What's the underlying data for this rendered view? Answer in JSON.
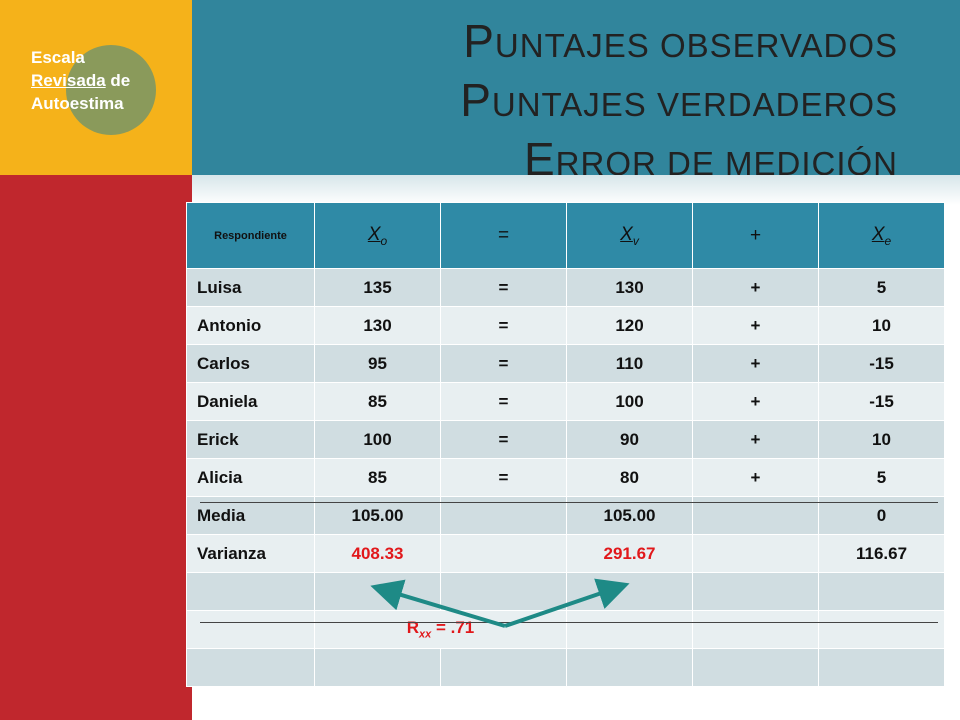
{
  "sidebar": {
    "label_line1": "Escala",
    "label_line2_underlined": "Revisada",
    "label_line2_rest": " de",
    "label_line3": "Autoestima"
  },
  "title": {
    "line1_cap": "P",
    "line1_rest": "untajes observados",
    "line2_cap": "P",
    "line2_rest": "untajes verdaderos",
    "line3_cap": "E",
    "line3_rest": "rror de medición"
  },
  "table": {
    "header": {
      "respondiente": "Respondiente",
      "xo": "X",
      "xo_sub": "o",
      "eq": "=",
      "xv": "X",
      "xv_sub": "v",
      "plus": "+",
      "xe": "X",
      "xe_sub": "e"
    },
    "rows": [
      {
        "name": "Luisa",
        "xo": "135",
        "eq": "=",
        "xv": "130",
        "plus": "+",
        "xe": "5"
      },
      {
        "name": "Antonio",
        "xo": "130",
        "eq": "=",
        "xv": "120",
        "plus": "+",
        "xe": "10"
      },
      {
        "name": "Carlos",
        "xo": "95",
        "eq": "=",
        "xv": "110",
        "plus": "+",
        "xe": "-15"
      },
      {
        "name": "Daniela",
        "xo": "85",
        "eq": "=",
        "xv": "100",
        "plus": "+",
        "xe": "-15"
      },
      {
        "name": "Erick",
        "xo": "100",
        "eq": "=",
        "xv": "90",
        "plus": "+",
        "xe": "10"
      },
      {
        "name": "Alicia",
        "xo": "85",
        "eq": "=",
        "xv": "80",
        "plus": "+",
        "xe": "5"
      }
    ],
    "media": {
      "label": "Media",
      "xo": "105.00",
      "xv": "105.00",
      "xe": "0"
    },
    "varianza": {
      "label": "Varianza",
      "xo": "408.33",
      "xv": "291.67",
      "xe": "116.67"
    },
    "rxx": {
      "r": "R",
      "sub": "xx",
      "value": " = .71"
    }
  },
  "colors": {
    "header": "#31859c",
    "sidebar_top": "#f5b21a",
    "sidebar_bottom": "#c0272d",
    "accent_red": "#e1181b",
    "arrow": "#1e8a86"
  }
}
